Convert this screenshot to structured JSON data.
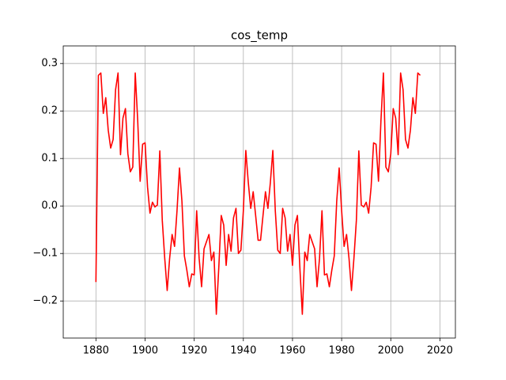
{
  "chart_data": {
    "type": "line",
    "title": "cos_temp",
    "x": [
      1880,
      1881,
      1882,
      1883,
      1884,
      1885,
      1886,
      1887,
      1888,
      1889,
      1890,
      1891,
      1892,
      1893,
      1894,
      1895,
      1896,
      1897,
      1898,
      1899,
      1900,
      1901,
      1902,
      1903,
      1904,
      1905,
      1906,
      1907,
      1908,
      1909,
      1910,
      1911,
      1912,
      1913,
      1914,
      1915,
      1916,
      1917,
      1918,
      1919,
      1920,
      1921,
      1922,
      1923,
      1924,
      1925,
      1926,
      1927,
      1928,
      1929,
      1930,
      1931,
      1932,
      1933,
      1934,
      1935,
      1936,
      1937,
      1938,
      1939,
      1940,
      1941,
      1942,
      1943,
      1944,
      1945,
      1946,
      1947,
      1948,
      1949,
      1950,
      1951,
      1952,
      1953,
      1954,
      1955,
      1956,
      1957,
      1958,
      1959,
      1960,
      1961,
      1962,
      1963,
      1964,
      1965,
      1966,
      1967,
      1968,
      1969,
      1970,
      1971,
      1972,
      1973,
      1974,
      1975,
      1976,
      1977,
      1978,
      1979,
      1980,
      1981,
      1982,
      1983,
      1984,
      1985,
      1986,
      1987,
      1988,
      1989,
      1990,
      1991,
      1992,
      1993,
      1994,
      1995,
      1996,
      1997,
      1998,
      1999,
      2000,
      2001,
      2002,
      2003,
      2004,
      2005,
      2006,
      2007,
      2008,
      2009,
      2010,
      2011,
      2012
    ],
    "series": [
      {
        "name": "cos_temp",
        "color": "#ff0000",
        "values": [
          -0.16,
          0.275,
          0.28,
          0.195,
          0.228,
          0.16,
          0.122,
          0.14,
          0.245,
          0.28,
          0.108,
          0.185,
          0.205,
          0.11,
          0.072,
          0.082,
          0.28,
          0.18,
          0.052,
          0.13,
          0.133,
          0.04,
          -0.015,
          0.008,
          -0.002,
          0.002,
          0.116,
          -0.03,
          -0.11,
          -0.178,
          -0.11,
          -0.06,
          -0.085,
          -0.01,
          0.08,
          0.01,
          -0.105,
          -0.135,
          -0.17,
          -0.143,
          -0.145,
          -0.01,
          -0.11,
          -0.17,
          -0.09,
          -0.075,
          -0.06,
          -0.115,
          -0.097,
          -0.228,
          -0.13,
          -0.02,
          -0.04,
          -0.125,
          -0.06,
          -0.095,
          -0.025,
          -0.005,
          -0.1,
          -0.093,
          -0.01,
          0.117,
          0.05,
          -0.005,
          0.03,
          -0.02,
          -0.072,
          -0.072,
          -0.02,
          0.03,
          -0.005,
          0.05,
          0.117,
          -0.01,
          -0.093,
          -0.1,
          -0.005,
          -0.025,
          -0.095,
          -0.06,
          -0.125,
          -0.04,
          -0.02,
          -0.13,
          -0.228,
          -0.097,
          -0.115,
          -0.06,
          -0.075,
          -0.09,
          -0.17,
          -0.11,
          -0.01,
          -0.145,
          -0.143,
          -0.17,
          -0.135,
          -0.105,
          0.01,
          0.08,
          -0.01,
          -0.085,
          -0.06,
          -0.11,
          -0.178,
          -0.11,
          -0.03,
          0.116,
          0.002,
          -0.002,
          0.008,
          -0.015,
          0.04,
          0.133,
          0.13,
          0.052,
          0.18,
          0.28,
          0.082,
          0.072,
          0.11,
          0.205,
          0.185,
          0.108,
          0.28,
          0.245,
          0.14,
          0.122,
          0.16,
          0.228,
          0.195,
          0.28,
          0.275
        ]
      }
    ],
    "xlim": [
      1866.7,
      2026.3
    ],
    "ylim": [
      -0.278,
      0.337
    ],
    "xticks": [
      1880,
      1900,
      1920,
      1940,
      1960,
      1980,
      2000,
      2020
    ],
    "yticks": [
      {
        "value": -0.2,
        "label": "−0.2"
      },
      {
        "value": -0.1,
        "label": "−0.1"
      },
      {
        "value": 0,
        "label": "0.0"
      },
      0.1,
      0.2,
      0.3
    ],
    "grid": true
  }
}
